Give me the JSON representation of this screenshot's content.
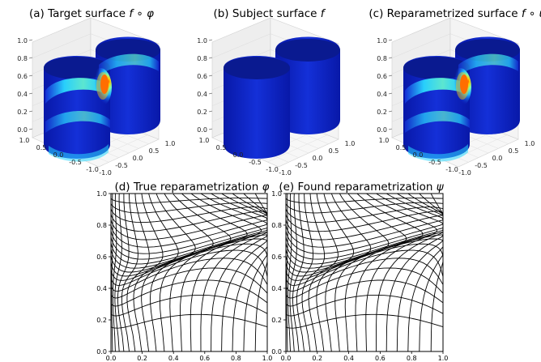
{
  "panels_3d": [
    {
      "id": "a",
      "title_prefix": "(a) Target surface ",
      "title_math": "f ∘ φ",
      "colormap": true
    },
    {
      "id": "b",
      "title_prefix": "(b) Subject surface ",
      "title_math": "f",
      "colormap": false
    },
    {
      "id": "c",
      "title_prefix": "(c) Reparametrized surface ",
      "title_math": "f ∘ ψ",
      "colormap": true
    }
  ],
  "axis3d": {
    "z_ticks": [
      "0.0",
      "0.2",
      "0.4",
      "0.6",
      "0.8",
      "1.0"
    ],
    "left_ticks": [
      "1.0",
      "0.5",
      "0.0",
      "-0.5",
      "-1.0"
    ],
    "right_ticks": [
      "-1.0",
      "-0.5",
      "0.0",
      "0.5",
      "1.0"
    ]
  },
  "panels_grid": [
    {
      "id": "d",
      "title_prefix": "(d) True reparametrization ",
      "title_math": "φ"
    },
    {
      "id": "e",
      "title_prefix": "(e) Found reparametrization ",
      "title_math": "ψ"
    }
  ],
  "axis2d": {
    "x_ticks": [
      "0.0",
      "0.2",
      "0.4",
      "0.6",
      "0.8",
      "1.0"
    ],
    "y_ticks": [
      "0.0",
      "0.2",
      "0.4",
      "0.6",
      "0.8",
      "1.0"
    ]
  },
  "colors": {
    "surface_base": "#0a1fbf",
    "surface_dark": "#00008b",
    "hot": "#ff2000",
    "warm": "#ffd000",
    "cyan": "#29d8ff",
    "grid_line": "#000000",
    "pane": "#ececec"
  }
}
